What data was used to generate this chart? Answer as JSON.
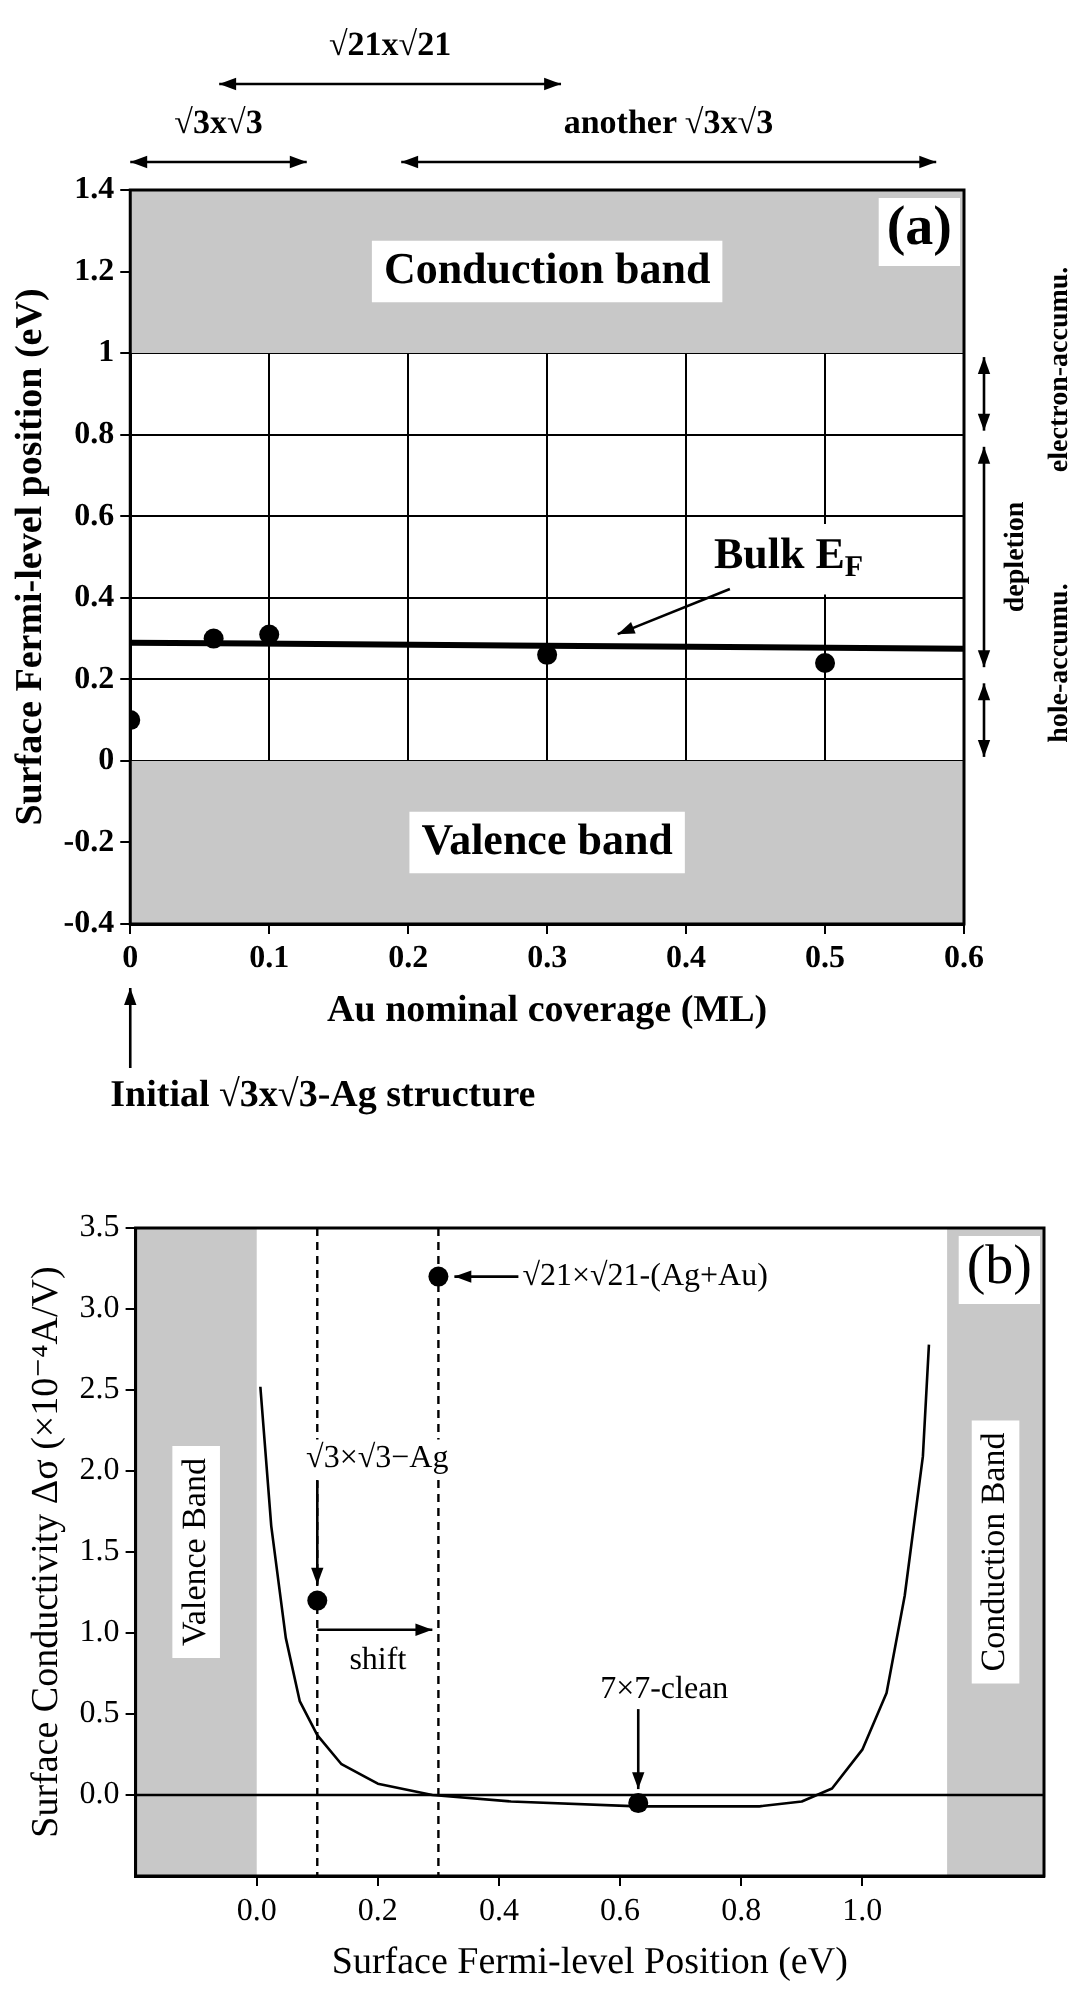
{
  "chart_data": [
    {
      "type": "scatter",
      "xlabel": "Au nominal coverage (ML)",
      "ylabel": "Surface Fermi-level position (eV)",
      "xlim": [
        0,
        0.6
      ],
      "xticks": [
        0,
        0.1,
        0.2,
        0.3,
        0.4,
        0.5,
        0.6
      ],
      "ylim": [
        -0.4,
        1.4
      ],
      "yticks": [
        -0.4,
        -0.2,
        0,
        0.2,
        0.4,
        0.6,
        0.8,
        1,
        1.2,
        1.4
      ],
      "grid": true,
      "legend": false,
      "series": [
        {
          "color": "#000000",
          "marker": "circle",
          "x": [
            0,
            0.06,
            0.1,
            0.3,
            0.5
          ],
          "values": [
            0.1,
            0.3,
            0.31,
            0.26,
            0.24
          ]
        },
        {
          "type": "line",
          "name": "Bulk E$_{F}$",
          "color": "#000000",
          "marker": "none",
          "x": [
            0,
            0.6
          ],
          "values": [
            0.29,
            0.275
          ]
        }
      ],
      "bands": [
        {
          "axis": "y",
          "from": 1,
          "to": 1.4,
          "label": "Conduction band",
          "color": "#c8c8c8"
        },
        {
          "axis": "y",
          "from": -0.4,
          "to": 0,
          "label": "Valence band",
          "color": "#c8c8c8"
        }
      ],
      "annotations": [
        "(a)",
        "√3x√3",
        "√21x√21",
        "another √3x√3",
        "Initial √3x√3-Ag structure",
        "electron-accumu.",
        "depletion",
        "hole-accumu."
      ]
    },
    {
      "type": "line",
      "xlabel": "Surface Fermi-level Position (eV)",
      "ylabel": "Surface Conductivity Δσ (×10⁻⁴A/V)",
      "xlim": [
        -0.2,
        1.3
      ],
      "xticks": [
        {
          "value": 0,
          "label": "0.0"
        },
        0.2,
        0.4,
        0.6,
        0.8,
        {
          "value": 1,
          "label": "1.0"
        }
      ],
      "ylim": [
        -0.5,
        3.5
      ],
      "yticks": [
        {
          "value": 0,
          "label": "0.0"
        },
        0.5,
        {
          "value": 1,
          "label": "1.0"
        },
        1.5,
        {
          "value": 2,
          "label": "2.0"
        },
        2.5,
        {
          "value": 3,
          "label": "3.0"
        },
        3.5
      ],
      "grid": false,
      "legend": false,
      "series": [
        {
          "color": "#000000",
          "marker": "none",
          "x": [
            0.006,
            0.024,
            0.048,
            0.071,
            0.1,
            0.14,
            0.2,
            0.29,
            0.42,
            0.63,
            0.83,
            0.9,
            0.95,
            1.0,
            1.04,
            1.07,
            1.1,
            1.11
          ],
          "values": [
            2.52,
            1.66,
            0.97,
            0.58,
            0.37,
            0.19,
            0.07,
            0.0,
            -0.04,
            -0.07,
            -0.07,
            -0.04,
            0.04,
            0.28,
            0.63,
            1.23,
            2.09,
            2.78
          ]
        },
        {
          "type": "scatter",
          "color": "#000000",
          "marker": "circle",
          "x": [
            0.1,
            0.3,
            0.63
          ],
          "values": [
            1.2,
            3.2,
            -0.05
          ]
        }
      ],
      "ref_lines": [
        {
          "axis": "y",
          "value": 0,
          "color": "#000000",
          "line_style": "solid"
        },
        {
          "axis": "x",
          "value": 0.1,
          "color": "#000000",
          "line_style": "dashed"
        },
        {
          "axis": "x",
          "value": 0.3,
          "color": "#000000",
          "line_style": "dashed"
        }
      ],
      "bands": [
        {
          "axis": "x",
          "from": -0.2,
          "to": 0,
          "label": "Valence Band",
          "color": "#c8c8c8"
        },
        {
          "axis": "x",
          "from": 1.14,
          "to": 1.3,
          "label": "Conduction Band",
          "color": "#c8c8c8"
        }
      ],
      "annotations": [
        {
          "text": "√21×√21-(Ag+Au)",
          "x": 0.3,
          "y": 3.2
        },
        {
          "text": "√3×√3−Ag",
          "x": 0.1,
          "y": 1.2
        },
        {
          "text": "7×7-clean",
          "x": 0.63,
          "y": -0.05
        },
        "shift",
        "(b)"
      ]
    }
  ]
}
